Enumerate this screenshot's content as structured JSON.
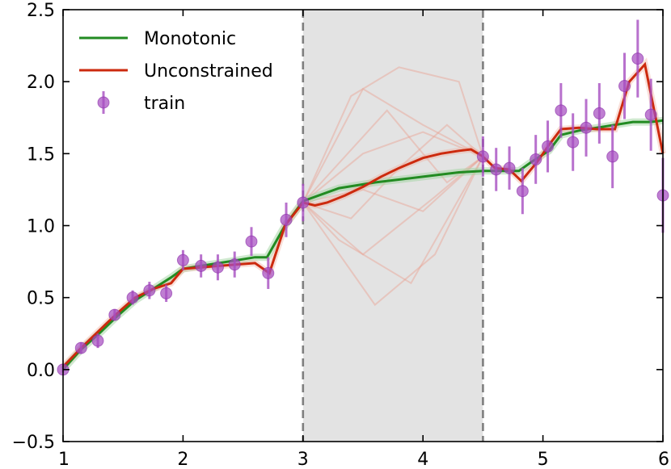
{
  "chart_data": {
    "type": "line",
    "title": "",
    "xlabel": "",
    "ylabel": "",
    "xlim": [
      1,
      6
    ],
    "ylim": [
      -0.5,
      2.5
    ],
    "xticks": [
      1,
      2,
      3,
      4,
      5,
      6
    ],
    "yticks": [
      -0.5,
      0.0,
      0.5,
      1.0,
      1.5,
      2.0,
      2.5
    ],
    "xtick_labels": [
      "1",
      "2",
      "3",
      "4",
      "5",
      "6"
    ],
    "ytick_labels": [
      "−0.5",
      "0.0",
      "0.5",
      "1.0",
      "1.5",
      "2.0",
      "2.5"
    ],
    "grid": false,
    "legend_position": "upper-left",
    "shaded_region": {
      "x": [
        3.0,
        4.5
      ],
      "color": "#e3e3e3"
    },
    "vertical_lines": [
      3.0,
      4.5
    ],
    "series": [
      {
        "name": "Monotonic",
        "color": "#228b22",
        "x": [
          1.0,
          1.15,
          1.3,
          1.45,
          1.6,
          1.75,
          1.9,
          2.0,
          2.15,
          2.3,
          2.45,
          2.6,
          2.7,
          2.85,
          3.0,
          3.1,
          3.3,
          3.6,
          4.0,
          4.3,
          4.5,
          4.8,
          4.9,
          5.05,
          5.15,
          5.3,
          5.45,
          5.6,
          5.75,
          5.9,
          6.0
        ],
        "y": [
          0.0,
          0.14,
          0.25,
          0.37,
          0.48,
          0.56,
          0.64,
          0.7,
          0.72,
          0.74,
          0.76,
          0.78,
          0.78,
          1.0,
          1.17,
          1.2,
          1.26,
          1.3,
          1.34,
          1.37,
          1.38,
          1.38,
          1.44,
          1.52,
          1.63,
          1.66,
          1.68,
          1.7,
          1.72,
          1.72,
          1.73
        ]
      },
      {
        "name": "Unconstrained",
        "color": "#cc2a0e",
        "x": [
          1.0,
          1.15,
          1.3,
          1.45,
          1.6,
          1.75,
          1.9,
          2.0,
          2.15,
          2.3,
          2.45,
          2.6,
          2.72,
          2.85,
          3.0,
          3.1,
          3.2,
          3.35,
          3.5,
          3.65,
          3.8,
          4.0,
          4.15,
          4.3,
          4.4,
          4.5,
          4.6,
          4.72,
          4.82,
          4.95,
          5.05,
          5.15,
          5.3,
          5.45,
          5.6,
          5.72,
          5.85,
          6.0
        ],
        "y": [
          0.02,
          0.15,
          0.27,
          0.39,
          0.5,
          0.56,
          0.6,
          0.7,
          0.71,
          0.72,
          0.73,
          0.74,
          0.67,
          1.0,
          1.16,
          1.14,
          1.16,
          1.21,
          1.27,
          1.34,
          1.4,
          1.47,
          1.5,
          1.52,
          1.53,
          1.48,
          1.4,
          1.39,
          1.31,
          1.44,
          1.56,
          1.67,
          1.68,
          1.67,
          1.67,
          2.0,
          2.12,
          1.5
        ]
      },
      {
        "name": "train",
        "type": "scatter",
        "color": "#a64ec0",
        "x": [
          1.0,
          1.15,
          1.29,
          1.43,
          1.58,
          1.72,
          1.86,
          2.0,
          2.15,
          2.29,
          2.43,
          2.57,
          2.71,
          2.86,
          3.0,
          4.5,
          4.61,
          4.72,
          4.83,
          4.94,
          5.04,
          5.15,
          5.25,
          5.36,
          5.47,
          5.58,
          5.68,
          5.79,
          5.9,
          6.0
        ],
        "y": [
          0.0,
          0.15,
          0.2,
          0.38,
          0.5,
          0.55,
          0.53,
          0.76,
          0.72,
          0.71,
          0.73,
          0.89,
          0.67,
          1.04,
          1.16,
          1.48,
          1.39,
          1.4,
          1.24,
          1.46,
          1.55,
          1.8,
          1.58,
          1.68,
          1.78,
          1.48,
          1.97,
          2.16,
          1.77,
          1.21
        ],
        "yerr": [
          0.02,
          0.04,
          0.05,
          0.04,
          0.05,
          0.06,
          0.06,
          0.07,
          0.08,
          0.09,
          0.09,
          0.1,
          0.11,
          0.12,
          0.13,
          0.14,
          0.15,
          0.15,
          0.16,
          0.17,
          0.18,
          0.19,
          0.2,
          0.2,
          0.21,
          0.22,
          0.23,
          0.27,
          0.25,
          0.26
        ]
      }
    ],
    "ensemble_samples": [
      {
        "x": [
          3.0,
          3.5,
          4.0,
          4.5
        ],
        "y": [
          1.16,
          1.95,
          1.7,
          1.48
        ]
      },
      {
        "x": [
          3.0,
          3.4,
          3.8,
          4.3,
          4.5
        ],
        "y": [
          1.16,
          1.9,
          2.1,
          2.0,
          1.48
        ]
      },
      {
        "x": [
          3.0,
          3.5,
          4.0,
          4.5
        ],
        "y": [
          1.16,
          1.5,
          1.65,
          1.48
        ]
      },
      {
        "x": [
          3.0,
          3.3,
          3.9,
          4.5
        ],
        "y": [
          1.16,
          0.9,
          0.6,
          1.48
        ]
      },
      {
        "x": [
          3.0,
          3.6,
          4.1,
          4.5
        ],
        "y": [
          1.16,
          0.45,
          0.8,
          1.48
        ]
      },
      {
        "x": [
          3.0,
          3.5,
          4.0,
          4.5
        ],
        "y": [
          1.16,
          1.25,
          1.1,
          1.48
        ]
      },
      {
        "x": [
          3.0,
          3.4,
          3.8,
          4.2,
          4.5
        ],
        "y": [
          1.16,
          1.05,
          1.4,
          1.7,
          1.48
        ]
      },
      {
        "x": [
          3.0,
          3.5,
          4.1,
          4.5
        ],
        "y": [
          1.16,
          0.8,
          1.2,
          1.48
        ]
      },
      {
        "x": [
          3.0,
          3.7,
          4.2,
          4.5
        ],
        "y": [
          1.16,
          1.8,
          1.3,
          1.48
        ]
      }
    ],
    "legend": [
      {
        "label": "Monotonic",
        "kind": "line",
        "color": "#228b22"
      },
      {
        "label": "Unconstrained",
        "kind": "line",
        "color": "#cc2a0e"
      },
      {
        "label": "train",
        "kind": "marker",
        "color": "#a64ec0"
      }
    ]
  }
}
